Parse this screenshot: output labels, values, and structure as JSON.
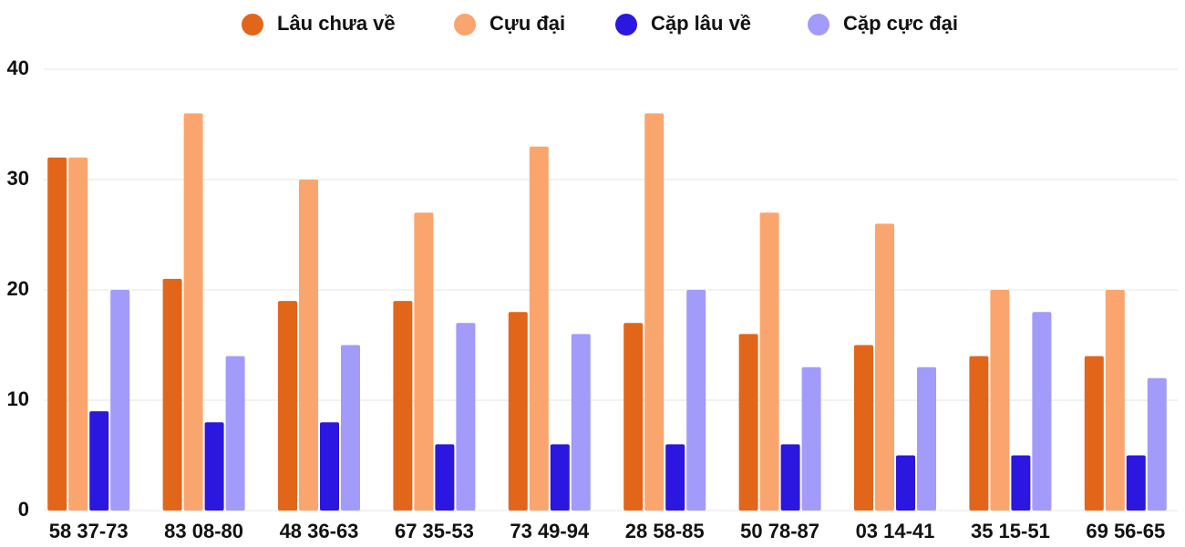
{
  "chart_data": {
    "type": "bar",
    "categories": [
      "58 37-73",
      "83 08-80",
      "48 36-63",
      "67 35-53",
      "73 49-94",
      "28 58-85",
      "50 78-87",
      "03 14-41",
      "35 15-51",
      "69 56-65"
    ],
    "series": [
      {
        "name": "Lâu chưa về",
        "color": "#e2661a",
        "values": [
          32,
          21,
          19,
          19,
          18,
          17,
          16,
          15,
          14,
          14
        ]
      },
      {
        "name": "Cựu đại",
        "color": "#fba56e",
        "values": [
          32,
          36,
          30,
          27,
          33,
          36,
          27,
          26,
          20,
          20
        ]
      },
      {
        "name": "Cặp lâu về",
        "color": "#2b17e0",
        "values": [
          9,
          8,
          8,
          6,
          6,
          6,
          6,
          5,
          5,
          5
        ]
      },
      {
        "name": "Cặp cực đại",
        "color": "#a29bfa",
        "values": [
          20,
          14,
          15,
          17,
          16,
          20,
          13,
          13,
          18,
          12
        ]
      }
    ],
    "ylim": [
      0,
      40
    ],
    "yticks": [
      0,
      10,
      20,
      30,
      40
    ],
    "grid": true
  }
}
